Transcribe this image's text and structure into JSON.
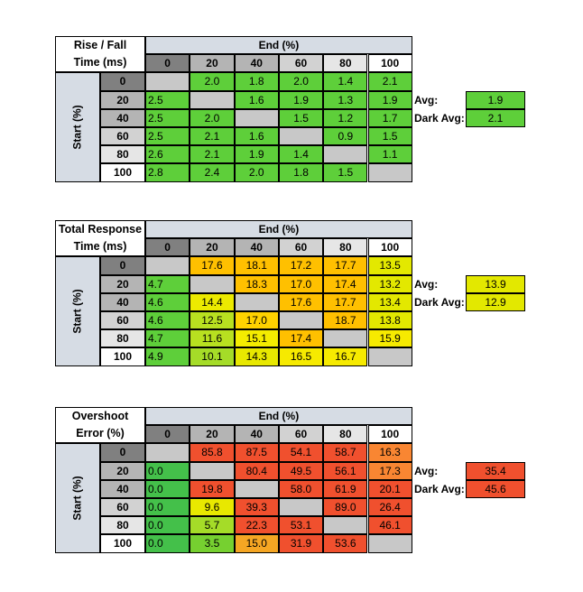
{
  "chart_data": [
    {
      "type": "heatmap",
      "title_lines": [
        "Rise / Fall",
        "Time (ms)"
      ],
      "xlabel": "End (%)",
      "ylabel": "Start (%)",
      "columns": [
        "0",
        "20",
        "40",
        "60",
        "80",
        "100"
      ],
      "rows": [
        "0",
        "20",
        "40",
        "60",
        "80",
        "100"
      ],
      "values": [
        [
          null,
          2.0,
          1.8,
          2.0,
          1.4,
          2.1
        ],
        [
          2.5,
          null,
          1.6,
          1.9,
          1.3,
          1.9
        ],
        [
          2.5,
          2.0,
          null,
          1.5,
          1.2,
          1.7
        ],
        [
          2.5,
          2.1,
          1.6,
          null,
          0.9,
          1.5
        ],
        [
          2.6,
          2.1,
          1.9,
          1.4,
          null,
          1.1
        ],
        [
          2.8,
          2.4,
          2.0,
          1.8,
          1.5,
          null
        ]
      ],
      "avg_label": "Avg:",
      "avg_value": "1.9",
      "dark_avg_label": "Dark Avg:",
      "dark_avg_value": "2.1",
      "colors": {
        "cells": [
          [
            null,
            "#5ecf3a",
            "#5ecf3a",
            "#5ecf3a",
            "#5ecf3a",
            "#5ecf3a"
          ],
          [
            "#5ecf3a",
            null,
            "#5ecf3a",
            "#5ecf3a",
            "#5ecf3a",
            "#5ecf3a"
          ],
          [
            "#5ecf3a",
            "#5ecf3a",
            null,
            "#5ecf3a",
            "#5ecf3a",
            "#5ecf3a"
          ],
          [
            "#5ecf3a",
            "#5ecf3a",
            "#5ecf3a",
            null,
            "#5ecf3a",
            "#5ecf3a"
          ],
          [
            "#5ecf3a",
            "#5ecf3a",
            "#5ecf3a",
            "#5ecf3a",
            null,
            "#5ecf3a"
          ],
          [
            "#5ecf3a",
            "#5ecf3a",
            "#5ecf3a",
            "#5ecf3a",
            "#5ecf3a",
            null
          ]
        ],
        "avg": "#5ecf3a",
        "dark_avg": "#5ecf3a"
      }
    },
    {
      "type": "heatmap",
      "title_lines": [
        "Total Response",
        "Time (ms)"
      ],
      "xlabel": "End (%)",
      "ylabel": "Start (%)",
      "columns": [
        "0",
        "20",
        "40",
        "60",
        "80",
        "100"
      ],
      "rows": [
        "0",
        "20",
        "40",
        "60",
        "80",
        "100"
      ],
      "values": [
        [
          null,
          17.6,
          18.1,
          17.2,
          17.7,
          13.5
        ],
        [
          4.7,
          null,
          18.3,
          17.0,
          17.4,
          13.2
        ],
        [
          4.6,
          14.4,
          null,
          17.6,
          17.7,
          13.4
        ],
        [
          4.6,
          12.5,
          17.0,
          null,
          18.7,
          13.8
        ],
        [
          4.7,
          11.6,
          15.1,
          17.4,
          null,
          15.9
        ],
        [
          4.9,
          10.1,
          14.3,
          16.5,
          16.7,
          null
        ]
      ],
      "avg_label": "Avg:",
      "avg_value": "13.9",
      "dark_avg_label": "Dark Avg:",
      "dark_avg_value": "12.9",
      "colors": {
        "cells": [
          [
            null,
            "#ffc000",
            "#ffc000",
            "#ffc000",
            "#ffc000",
            "#e3e800"
          ],
          [
            "#5ecf3a",
            null,
            "#ffc000",
            "#ffc000",
            "#ffc000",
            "#e3e800"
          ],
          [
            "#5ecf3a",
            "#ecea00",
            null,
            "#ffc000",
            "#ffc000",
            "#e3e800"
          ],
          [
            "#5ecf3a",
            "#b8e020",
            "#ffd200",
            null,
            "#ffc000",
            "#e3e800"
          ],
          [
            "#5ecf3a",
            "#b8e020",
            "#f4ec00",
            "#ffc000",
            null,
            "#f6ea00"
          ],
          [
            "#5ecf3a",
            "#a5dc28",
            "#e8e800",
            "#f6ea00",
            "#f6ea00",
            null
          ]
        ],
        "avg": "#e3e800",
        "dark_avg": "#e3e800"
      }
    },
    {
      "type": "heatmap",
      "title_lines": [
        "Overshoot",
        "Error (%)"
      ],
      "xlabel": "End (%)",
      "ylabel": "Start (%)",
      "columns": [
        "0",
        "20",
        "40",
        "60",
        "80",
        "100"
      ],
      "rows": [
        "0",
        "20",
        "40",
        "60",
        "80",
        "100"
      ],
      "values": [
        [
          null,
          85.8,
          87.5,
          54.1,
          58.7,
          16.3
        ],
        [
          0.0,
          null,
          80.4,
          49.5,
          56.1,
          17.3
        ],
        [
          0.0,
          19.8,
          null,
          58.0,
          61.9,
          20.1
        ],
        [
          0.0,
          9.6,
          39.3,
          null,
          89.0,
          26.4
        ],
        [
          0.0,
          5.7,
          22.3,
          53.1,
          null,
          46.1
        ],
        [
          0.0,
          3.5,
          15.0,
          31.9,
          53.6,
          null
        ]
      ],
      "avg_label": "Avg:",
      "avg_value": "35.4",
      "dark_avg_label": "Dark Avg:",
      "dark_avg_value": "45.6",
      "colors": {
        "cells": [
          [
            null,
            "#f0502e",
            "#f0502e",
            "#f0502e",
            "#f0502e",
            "#f98632"
          ],
          [
            "#44c04a",
            null,
            "#f0502e",
            "#f0502e",
            "#f0502e",
            "#f98632"
          ],
          [
            "#44c04a",
            "#f0502e",
            null,
            "#f0502e",
            "#f0502e",
            "#f0502e"
          ],
          [
            "#44c04a",
            "#e8e800",
            "#f0502e",
            null,
            "#f0502e",
            "#f0502e"
          ],
          [
            "#44c04a",
            "#a5dc28",
            "#f0502e",
            "#f0502e",
            null,
            "#f0502e"
          ],
          [
            "#44c04a",
            "#76d030",
            "#f5a623",
            "#f0502e",
            "#f0502e",
            null
          ]
        ],
        "avg": "#f0502e",
        "dark_avg": "#f0502e"
      }
    }
  ],
  "palette": {
    "header_dark": "#808080",
    "header_mid": "#b4b4b4",
    "header_light": "#d2d2d2",
    "header_lighter": "#e6e6e6",
    "header_white": "#ffffff",
    "diagonal": "#c8c8c8",
    "axis_bg": "#d6dce4"
  }
}
